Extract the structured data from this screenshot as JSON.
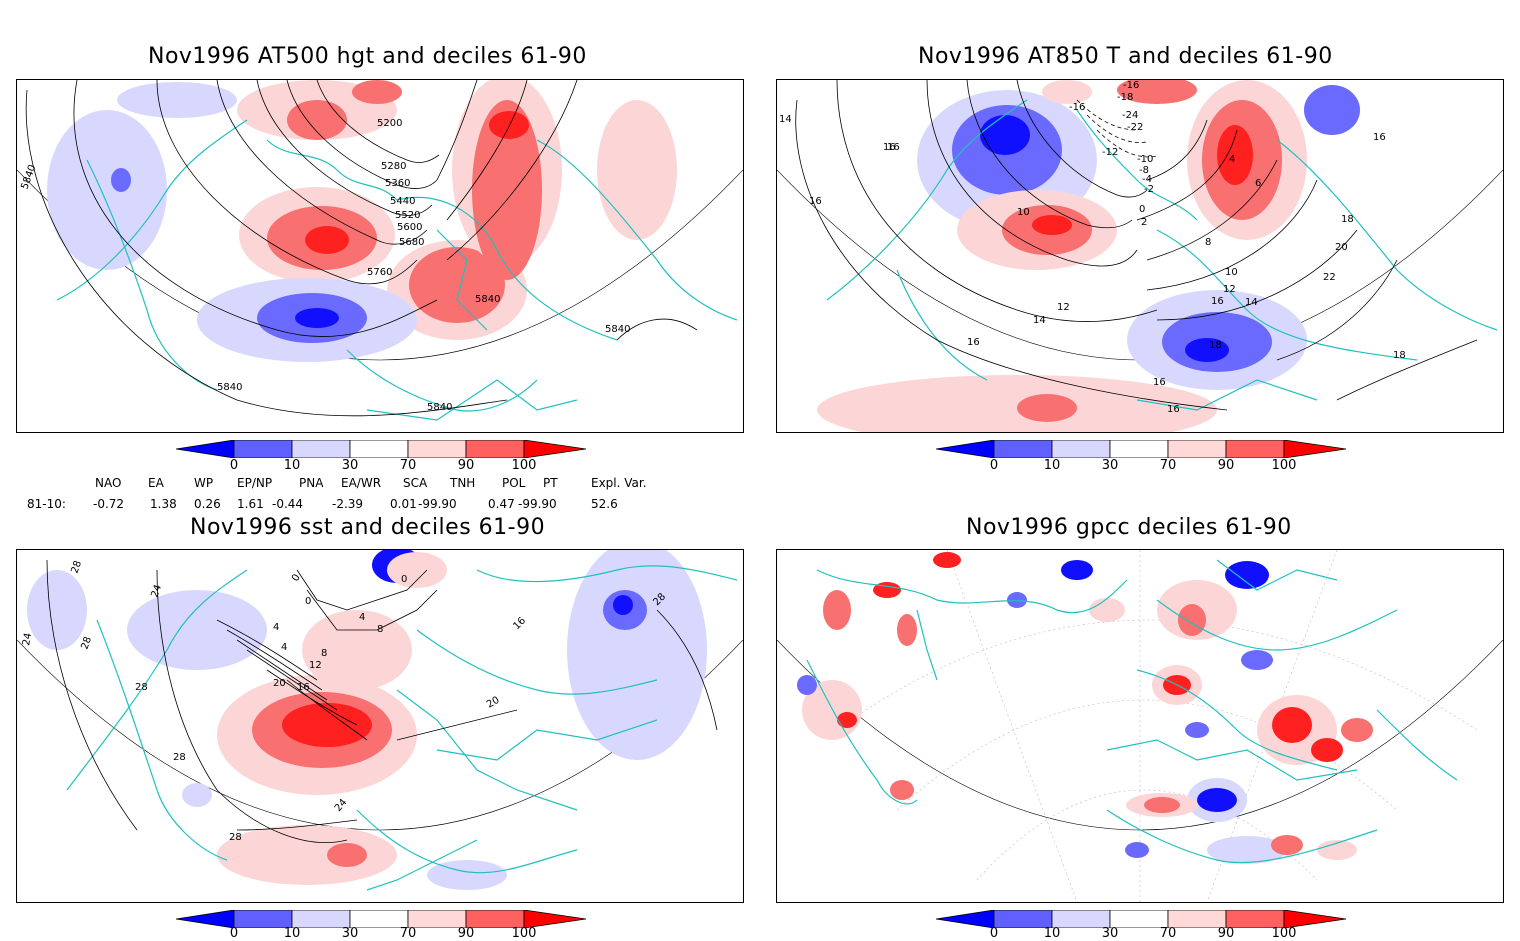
{
  "panels": [
    {
      "title": "Nov1996 AT500 hgt and deciles 61-90",
      "contour_labels": [
        "5200",
        "5280",
        "5360",
        "5440",
        "5520",
        "5600",
        "5680",
        "5760",
        "5840",
        "5840",
        "5840",
        "5840",
        "5840"
      ]
    },
    {
      "title": "Nov1996 AT850 T and deciles 61-90",
      "contour_labels": [
        "-16",
        "-18",
        "-16",
        "-24",
        "-22",
        "-12",
        "-10",
        "-8",
        "-4",
        "-2",
        "0",
        "2",
        "4",
        "6",
        "8",
        "10",
        "10",
        "12",
        "12",
        "14",
        "14",
        "16",
        "16",
        "16",
        "16",
        "16",
        "16",
        "18",
        "18",
        "18",
        "20",
        "22",
        "14",
        "16",
        "16"
      ]
    },
    {
      "title": "Nov1996 sst and deciles 61-90",
      "contour_labels": [
        "28",
        "24",
        "28",
        "24",
        "28",
        "28",
        "0",
        "0",
        "0",
        "4",
        "4",
        "4",
        "8",
        "8",
        "12",
        "16",
        "20",
        "20",
        "24",
        "28",
        "16",
        "28"
      ]
    },
    {
      "title": "Nov1996 gpcc deciles 61-90",
      "contour_labels": []
    }
  ],
  "colorbar": {
    "ticks": [
      "0",
      "10",
      "30",
      "70",
      "90",
      "100"
    ],
    "colors": [
      "#0000ff",
      "#6060ff",
      "#d8d8ff",
      "#ffffff",
      "#ffd8d8",
      "#ff6060",
      "#ff0000"
    ]
  },
  "indices": {
    "headers": [
      "NAO",
      "EA",
      "WP",
      "EP/NP",
      "PNA",
      "EA/WR",
      "SCA",
      "TNH",
      "POL",
      "PT",
      "Expl. Var."
    ],
    "row_label": "81-10:",
    "values": [
      "-0.72",
      "1.38",
      "0.26",
      "1.61",
      "-0.44",
      "-2.39",
      "0.01",
      "-99.90",
      "0.47",
      "-99.90",
      "52.6"
    ]
  },
  "colors": {
    "coast": "#20c0c0",
    "strong_positive": "#ff2020",
    "positive": "#f87070",
    "weak_positive": "#fcd6d6",
    "weak_negative": "#d8d8ff",
    "negative": "#6a6aff",
    "strong_negative": "#1010ff"
  }
}
